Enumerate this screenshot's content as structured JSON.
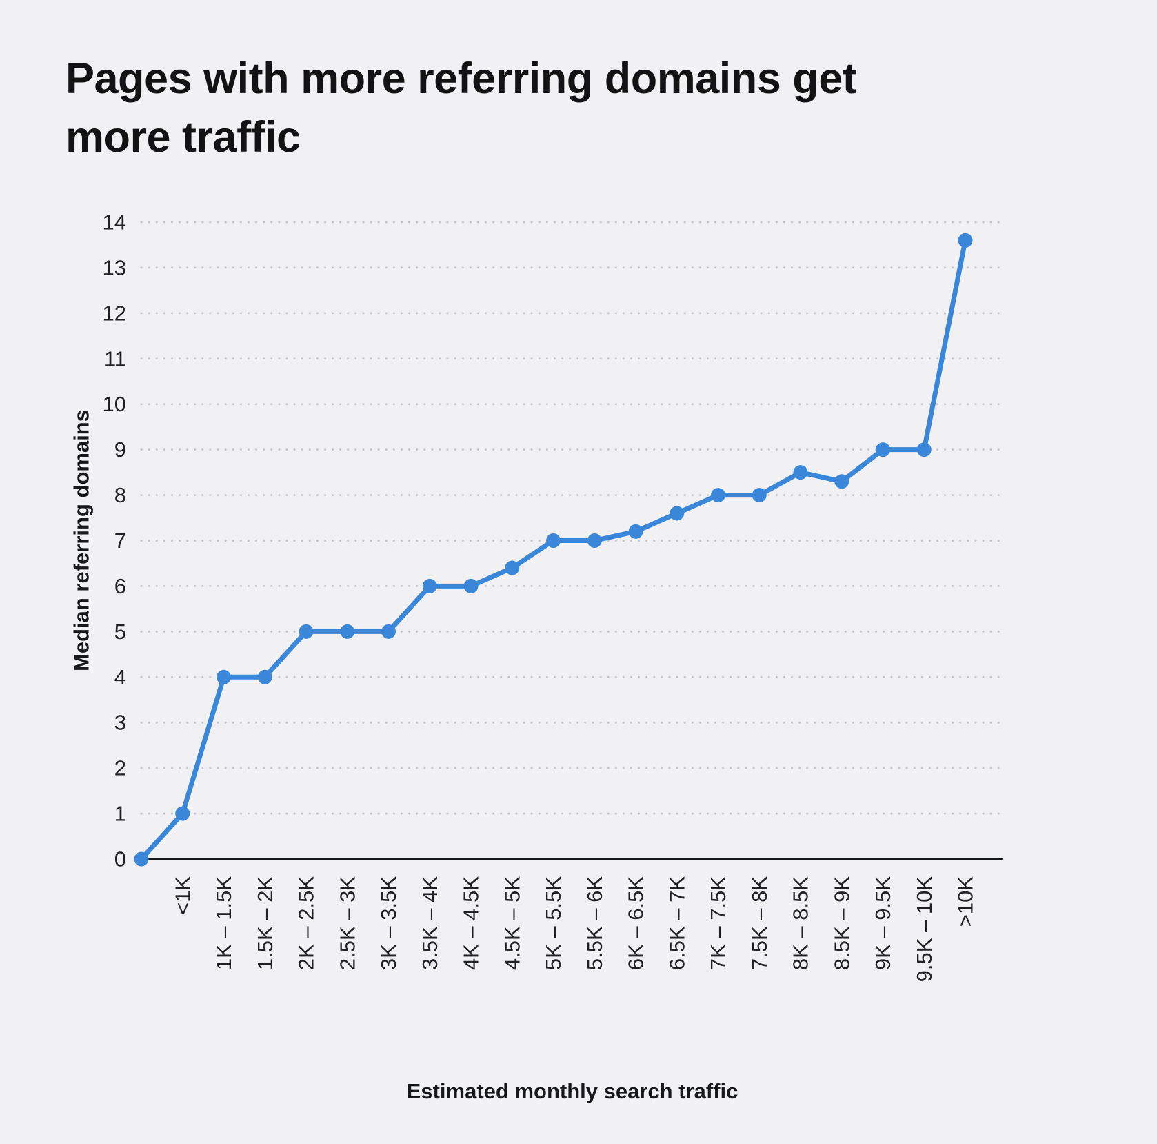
{
  "page": {
    "background": "#f1f1f4"
  },
  "chart_data": {
    "type": "line",
    "title": "Pages with more referring domains get more traffic",
    "xlabel": "Estimated monthly search traffic",
    "ylabel": "Median referring domains",
    "ylim": [
      0,
      14
    ],
    "y_ticks": [
      0,
      1,
      2,
      3,
      4,
      5,
      6,
      7,
      8,
      9,
      10,
      11,
      12,
      13,
      14
    ],
    "grid": "dotted horizontal gridlines at each integer",
    "legend": "none",
    "line_color": "#3a87d9",
    "grid_color": "#c6c6ca",
    "axis_color": "#17181a",
    "categories": [
      "",
      "<1K",
      "1K – 1.5K",
      "1.5K – 2K",
      "2K – 2.5K",
      "2.5K – 3K",
      "3K – 3.5K",
      "3.5K – 4K",
      "4K – 4.5K",
      "4.5K – 5K",
      "5K – 5.5K",
      "5.5K – 6K",
      "6K – 6.5K",
      "6.5K – 7K",
      "7K – 7.5K",
      "7.5K – 8K",
      "8K – 8.5K",
      "8.5K – 9K",
      "9K – 9.5K",
      "9.5K – 10K",
      ">10K"
    ],
    "values": [
      0,
      1,
      4,
      4,
      5,
      5,
      5,
      6,
      6,
      6.4,
      7,
      7,
      7.2,
      7.6,
      8,
      8,
      8.5,
      8.3,
      9,
      9,
      13.6
    ]
  }
}
